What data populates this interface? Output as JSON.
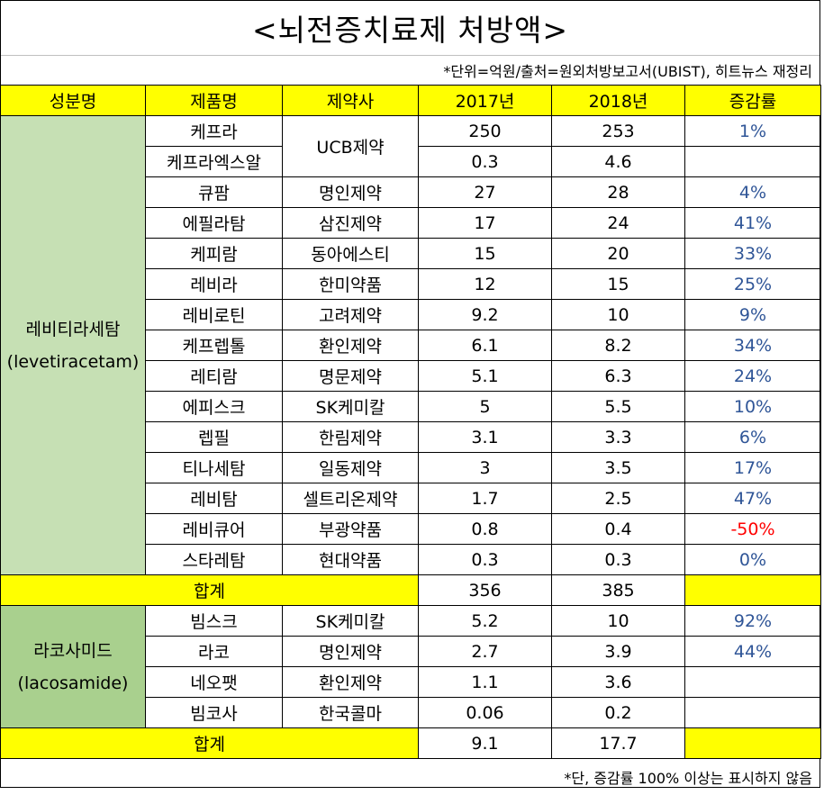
{
  "title": "<뇌전증치료제 처방액>",
  "note_top": "*단위=억원/출처=원외처방보고서(UBIST), 히트뉴스 재정리",
  "headers": [
    "성분명",
    "제품명",
    "제약사",
    "2017년",
    "2018년",
    "증감률"
  ],
  "groups": [
    {
      "ingredient_ko": "레비티라세탐",
      "ingredient_en": "(levetiracetam)",
      "rows": [
        {
          "product": "케프라",
          "company": "UCB제약",
          "y2017": "250",
          "y2018": "253",
          "rate": "1%"
        },
        {
          "product": "케프라엑스알",
          "company": "",
          "y2017": "0.3",
          "y2018": "4.6",
          "rate": ""
        },
        {
          "product": "큐팜",
          "company": "명인제약",
          "y2017": "27",
          "y2018": "28",
          "rate": "4%"
        },
        {
          "product": "에필라탐",
          "company": "삼진제약",
          "y2017": "17",
          "y2018": "24",
          "rate": "41%"
        },
        {
          "product": "케피람",
          "company": "동아에스티",
          "y2017": "15",
          "y2018": "20",
          "rate": "33%"
        },
        {
          "product": "레비라",
          "company": "한미약품",
          "y2017": "12",
          "y2018": "15",
          "rate": "25%"
        },
        {
          "product": "레비로틴",
          "company": "고려제약",
          "y2017": "9.2",
          "y2018": "10",
          "rate": "9%"
        },
        {
          "product": "케프렙톨",
          "company": "환인제약",
          "y2017": "6.1",
          "y2018": "8.2",
          "rate": "34%"
        },
        {
          "product": "레티람",
          "company": "명문제약",
          "y2017": "5.1",
          "y2018": "6.3",
          "rate": "24%"
        },
        {
          "product": "에피스크",
          "company": "SK케미칼",
          "y2017": "5",
          "y2018": "5.5",
          "rate": "10%"
        },
        {
          "product": "렙필",
          "company": "한림제약",
          "y2017": "3.1",
          "y2018": "3.3",
          "rate": "6%"
        },
        {
          "product": "티나세탐",
          "company": "일동제약",
          "y2017": "3",
          "y2018": "3.5",
          "rate": "17%"
        },
        {
          "product": "레비탐",
          "company": "셀트리온제약",
          "y2017": "1.7",
          "y2018": "2.5",
          "rate": "47%"
        },
        {
          "product": "레비큐어",
          "company": "부광약품",
          "y2017": "0.8",
          "y2018": "0.4",
          "rate": "-50%"
        },
        {
          "product": "스타레탐",
          "company": "현대약품",
          "y2017": "0.3",
          "y2018": "0.3",
          "rate": "0%"
        }
      ],
      "total": {
        "label": "합계",
        "y2017": "356",
        "y2018": "385"
      }
    },
    {
      "ingredient_ko": "라코사미드",
      "ingredient_en": "(lacosamide)",
      "rows": [
        {
          "product": "빔스크",
          "company": "SK케미칼",
          "y2017": "5.2",
          "y2018": "10",
          "rate": "92%"
        },
        {
          "product": "라코",
          "company": "명인제약",
          "y2017": "2.7",
          "y2018": "3.9",
          "rate": "44%"
        },
        {
          "product": "네오팻",
          "company": "환인제약",
          "y2017": "1.1",
          "y2018": "3.6",
          "rate": ""
        },
        {
          "product": "빔코사",
          "company": "한국콜마",
          "y2017": "0.06",
          "y2018": "0.2",
          "rate": ""
        }
      ],
      "total": {
        "label": "합계",
        "y2017": "9.1",
        "y2018": "17.7"
      }
    }
  ],
  "note_bottom": "*단, 증감률 100% 이상는 표시하지 않음",
  "colors": {
    "header_bg": "#ffff00",
    "levetiracetam_bg": "#c6e0b4",
    "lacosamide_bg": "#a9d08e",
    "rate_text": "#2f5597",
    "negative_rate_text": "#ff0000"
  }
}
